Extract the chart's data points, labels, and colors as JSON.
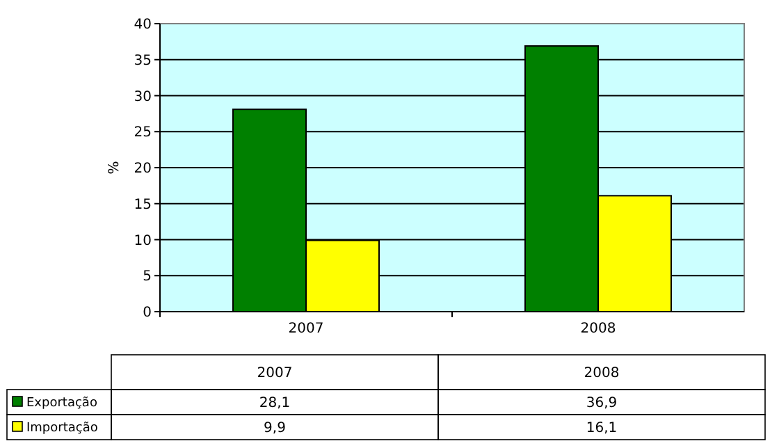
{
  "chart_data": {
    "type": "bar",
    "ylabel": "%",
    "categories": [
      "2007",
      "2008"
    ],
    "series": [
      {
        "name": "Exportação",
        "color": "#008000",
        "values": [
          28.1,
          36.9
        ],
        "value_labels": [
          "28,1",
          "36,9"
        ]
      },
      {
        "name": "Importação",
        "color": "#ffff00",
        "values": [
          9.9,
          16.1
        ],
        "value_labels": [
          "9,9",
          "16,1"
        ]
      }
    ],
    "ylim": [
      0,
      40
    ],
    "yticks": [
      0,
      5,
      10,
      15,
      20,
      25,
      30,
      35,
      40
    ],
    "grid": "y",
    "legend": "bottom"
  }
}
